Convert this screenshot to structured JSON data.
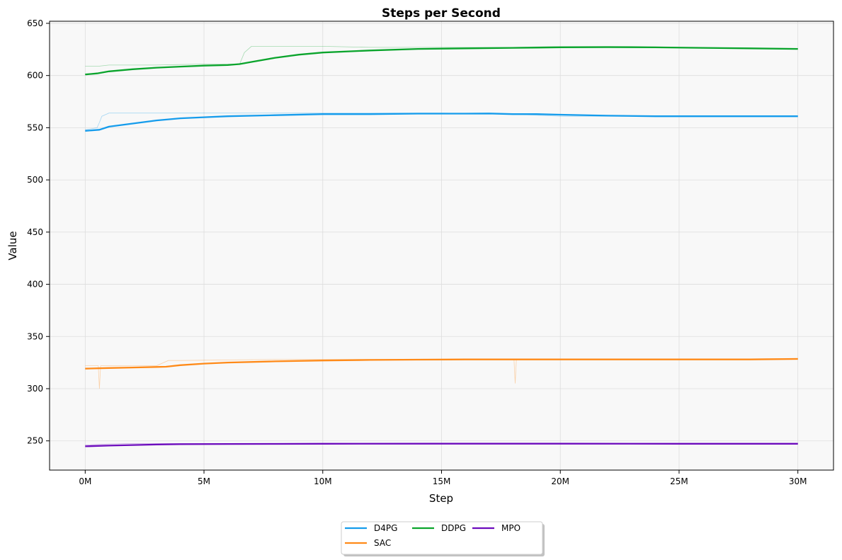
{
  "chart_data": {
    "type": "line",
    "title": "Steps per Second",
    "xlabel": "Step",
    "ylabel": "Value",
    "xlim": [
      -1.5,
      31.5
    ],
    "ylim": [
      222,
      652
    ],
    "xticks": [
      0,
      5,
      10,
      15,
      20,
      25,
      30
    ],
    "xtick_labels": [
      "0M",
      "5M",
      "10M",
      "15M",
      "20M",
      "25M",
      "30M"
    ],
    "yticks": [
      250,
      300,
      350,
      400,
      450,
      500,
      550,
      600,
      650
    ],
    "ytick_labels": [
      "250",
      "300",
      "350",
      "400",
      "450",
      "500",
      "550",
      "600",
      "650"
    ],
    "grid": true,
    "legend_position": "bottom-center",
    "x_unit": "M steps",
    "series": [
      {
        "name": "D4PG",
        "color": "#159cec",
        "smoothed": {
          "x": [
            0,
            0.6,
            1,
            2,
            3,
            4,
            5,
            6,
            8,
            10,
            12,
            14,
            16,
            17,
            18,
            19,
            20,
            22,
            24,
            26,
            28,
            30
          ],
          "y": [
            547,
            548,
            551,
            554,
            557,
            559,
            560,
            561,
            562,
            563,
            563,
            563.5,
            563.5,
            563.6,
            563,
            563,
            562.5,
            561.5,
            561,
            561,
            561,
            561
          ]
        },
        "raw": {
          "x": [
            0,
            0.5,
            0.6,
            0.7,
            1,
            3,
            6,
            9,
            12,
            15,
            18,
            20,
            21,
            25,
            28,
            30
          ],
          "y": [
            548,
            550,
            555,
            561,
            564,
            564,
            564,
            564,
            564,
            564,
            563,
            561,
            561,
            561,
            561,
            561
          ]
        }
      },
      {
        "name": "DDPG",
        "color": "#0aa42c",
        "smoothed": {
          "x": [
            0,
            0.5,
            1,
            2,
            3,
            4,
            5,
            6,
            6.5,
            7,
            8,
            9,
            10,
            12,
            14,
            16,
            18,
            20,
            22,
            24,
            26,
            28,
            30
          ],
          "y": [
            601,
            602,
            604,
            606,
            607.5,
            608.5,
            609.5,
            610,
            611,
            613,
            617,
            620,
            622,
            624,
            625.5,
            626,
            626.5,
            627,
            627.2,
            627,
            626.5,
            626,
            625.5
          ]
        },
        "raw": {
          "x": [
            0,
            0.6,
            1,
            3,
            5,
            6.5,
            6.7,
            7,
            10,
            12,
            15,
            18,
            20,
            23,
            25,
            28,
            30
          ],
          "y": [
            609,
            609,
            610,
            610,
            611,
            611,
            622,
            628,
            628,
            627,
            627,
            627,
            628,
            628,
            627,
            626,
            626
          ]
        }
      },
      {
        "name": "MPO",
        "color": "#6c0bbd",
        "smoothed": {
          "x": [
            0,
            1,
            2,
            3,
            4,
            6,
            8,
            10,
            15,
            20,
            25,
            30
          ],
          "y": [
            244.8,
            245.5,
            246,
            246.5,
            246.8,
            247,
            247.1,
            247.2,
            247.3,
            247.3,
            247.2,
            247.2
          ]
        },
        "raw": {
          "x": [
            0,
            1,
            2,
            4,
            8,
            12,
            16,
            20,
            24,
            28,
            30
          ],
          "y": [
            246,
            247,
            247.5,
            247.5,
            247.5,
            247.5,
            247.5,
            247.5,
            247.5,
            247.5,
            247.5
          ]
        }
      },
      {
        "name": "SAC",
        "color": "#ff8a18",
        "smoothed": {
          "x": [
            0,
            1,
            2,
            3,
            3.4,
            4,
            5,
            6,
            8,
            10,
            12,
            14,
            16,
            18,
            20,
            24,
            28,
            30
          ],
          "y": [
            319.2,
            319.8,
            320.3,
            320.8,
            321,
            322.5,
            324,
            325,
            326.2,
            327,
            327.5,
            327.8,
            328,
            328,
            328,
            328,
            328,
            328.5
          ]
        },
        "raw": {
          "x": [
            0,
            0.55,
            0.6,
            0.65,
            1,
            3,
            3.5,
            4,
            8,
            12,
            16,
            18.05,
            18.1,
            18.15,
            22,
            26,
            30
          ],
          "y": [
            322,
            322,
            300,
            322,
            322,
            322,
            327,
            327,
            328,
            328,
            328,
            328,
            305,
            328,
            328,
            328,
            329
          ]
        }
      }
    ]
  }
}
